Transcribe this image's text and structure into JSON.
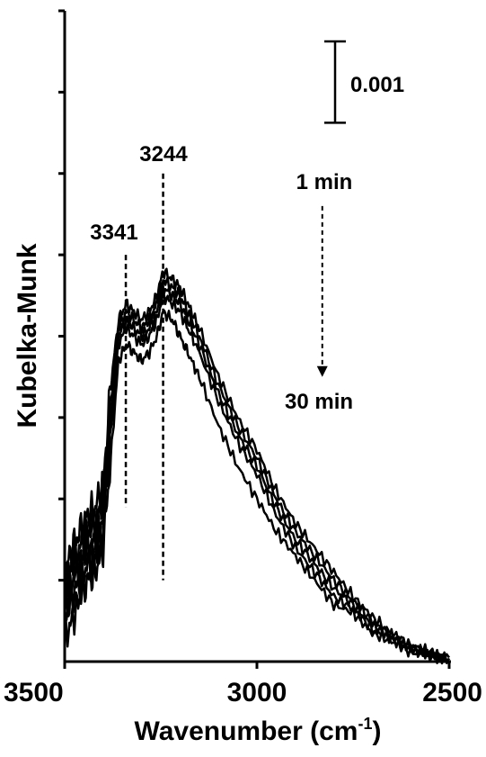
{
  "chart_data": {
    "type": "line",
    "xlabel": "Wavenumber (cm",
    "xlabel_sup": "-1",
    "xlabel_close": ")",
    "ylabel": "Kubelka-Munk",
    "xlim": [
      3500,
      2500
    ],
    "x_reversed": true,
    "ylim": [
      0,
      0.008
    ],
    "xticks": [
      3500,
      3000,
      2500
    ],
    "xtick_labels": [
      "3500",
      "3000",
      "2500"
    ],
    "y_tick_labels_shown": false,
    "grid": false,
    "scale_bar": {
      "value": 0.001,
      "label": "0.001"
    },
    "time_arrow": {
      "start_label": "1 min",
      "end_label": "30 min",
      "x": 2830,
      "y_start": 0.0056,
      "y_end": 0.0035
    },
    "markers": [
      {
        "x": 3341,
        "label": "3341",
        "y_top": 0.005,
        "y_bottom": 0.0019
      },
      {
        "x": 3244,
        "label": "3244",
        "y_top": 0.006,
        "y_bottom": 0.001
      }
    ],
    "x": [
      3500,
      3480,
      3460,
      3440,
      3420,
      3400,
      3380,
      3360,
      3340,
      3320,
      3300,
      3280,
      3260,
      3244,
      3220,
      3200,
      3180,
      3150,
      3100,
      3050,
      3000,
      2950,
      2900,
      2850,
      2800,
      2750,
      2700,
      2650,
      2600,
      2550,
      2500
    ],
    "series": [
      {
        "values": [
          0.0011,
          0.0014,
          0.0016,
          0.0018,
          0.0019,
          0.0022,
          0.0034,
          0.0042,
          0.0044,
          0.0043,
          0.0042,
          0.0043,
          0.0045,
          0.0048,
          0.0047,
          0.0046,
          0.0044,
          0.0041,
          0.0035,
          0.003,
          0.0026,
          0.0021,
          0.0017,
          0.0014,
          0.0011,
          0.0008,
          0.00055,
          0.00035,
          0.0002,
          0.00012,
          5e-05
        ]
      },
      {
        "values": [
          0.0009,
          0.0012,
          0.0014,
          0.0016,
          0.0017,
          0.002,
          0.0032,
          0.0041,
          0.0043,
          0.0042,
          0.0041,
          0.0042,
          0.0044,
          0.0047,
          0.0046,
          0.0045,
          0.0043,
          0.004,
          0.0034,
          0.0029,
          0.0025,
          0.002,
          0.0016,
          0.0013,
          0.001,
          0.00075,
          0.0005,
          0.00032,
          0.00018,
          0.0001,
          4e-05
        ]
      },
      {
        "values": [
          0.0007,
          0.001,
          0.0012,
          0.0014,
          0.0015,
          0.0018,
          0.003,
          0.004,
          0.0042,
          0.0041,
          0.004,
          0.0041,
          0.0043,
          0.0046,
          0.0045,
          0.0044,
          0.0042,
          0.0039,
          0.0033,
          0.0028,
          0.0024,
          0.0019,
          0.0015,
          0.0012,
          0.0009,
          0.0007,
          0.00045,
          0.0003,
          0.00016,
          9e-05,
          3e-05
        ]
      },
      {
        "values": [
          0.0005,
          0.0008,
          0.001,
          0.0012,
          0.0013,
          0.0016,
          0.0028,
          0.0039,
          0.0041,
          0.004,
          0.0039,
          0.004,
          0.0042,
          0.0045,
          0.0044,
          0.0043,
          0.0041,
          0.0038,
          0.0032,
          0.0027,
          0.0023,
          0.0018,
          0.0014,
          0.0011,
          0.0008,
          0.00065,
          0.0004,
          0.00028,
          0.00014,
          8e-05,
          2e-05
        ]
      },
      {
        "values": [
          0.0003,
          0.0005,
          0.0008,
          0.001,
          0.0011,
          0.0014,
          0.0025,
          0.0037,
          0.0039,
          0.0038,
          0.0037,
          0.0038,
          0.004,
          0.0043,
          0.0042,
          0.004,
          0.0038,
          0.0035,
          0.0029,
          0.0024,
          0.002,
          0.0016,
          0.0013,
          0.001,
          0.0007,
          0.0006,
          0.00035,
          0.00025,
          0.00012,
          7e-05,
          1e-05
        ]
      }
    ]
  }
}
